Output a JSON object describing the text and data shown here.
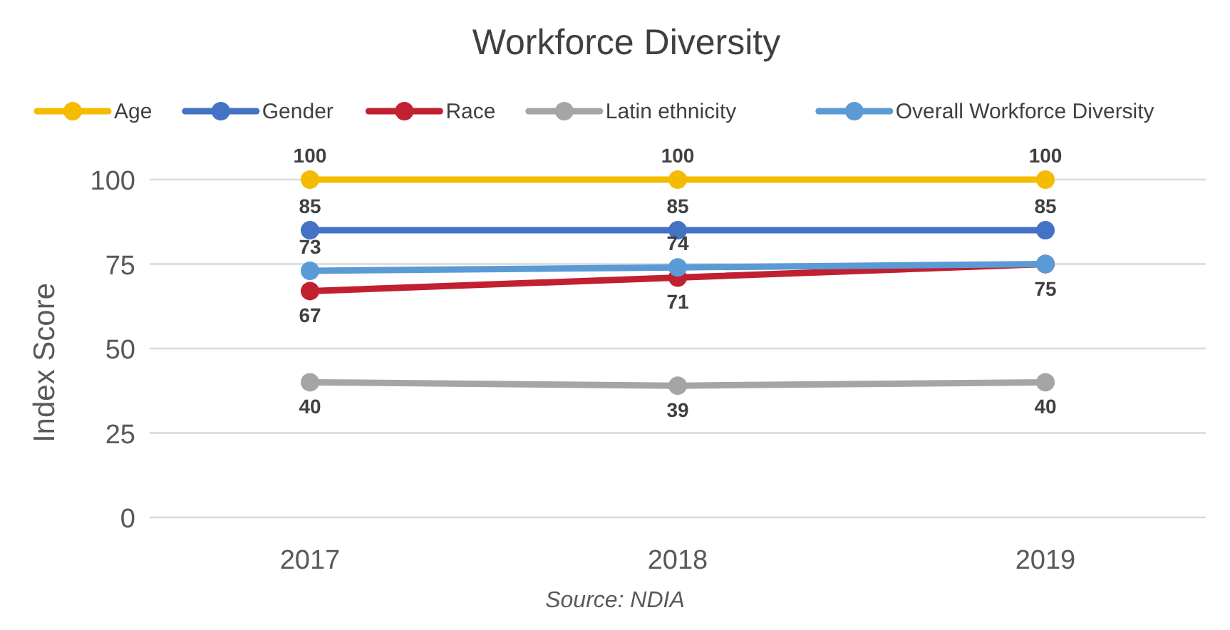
{
  "chart_data": {
    "type": "line",
    "title": "Workforce Diversity",
    "ylabel": "Index Score",
    "categories": [
      "2017",
      "2018",
      "2019"
    ],
    "ylim": [
      0,
      100
    ],
    "yticks": [
      0,
      25,
      50,
      75,
      100
    ],
    "grid": "y",
    "legend": "top",
    "marker": "circle",
    "line_style": "solid",
    "annotations": [
      "Source: NDIA"
    ],
    "series": [
      {
        "name": "Age",
        "color": "#f5bb00",
        "values": [
          100,
          100,
          100
        ],
        "value_labels": [
          "100",
          "100",
          "100"
        ]
      },
      {
        "name": "Gender",
        "color": "#4472c4",
        "values": [
          85,
          85,
          85
        ],
        "value_labels": [
          "85",
          "85",
          "85"
        ]
      },
      {
        "name": "Race",
        "color": "#c0202f",
        "values": [
          67,
          71,
          75
        ],
        "value_labels": [
          "67",
          "71",
          "75"
        ]
      },
      {
        "name": "Latin ethnicity",
        "color": "#a5a5a5",
        "values": [
          40,
          39,
          40
        ],
        "value_labels": [
          "40",
          "39",
          "40"
        ]
      },
      {
        "name": "Overall Workforce Diversity",
        "color": "#5b9bd5",
        "values": [
          73,
          74,
          75
        ],
        "value_labels": [
          "73",
          "74",
          null
        ]
      }
    ]
  }
}
